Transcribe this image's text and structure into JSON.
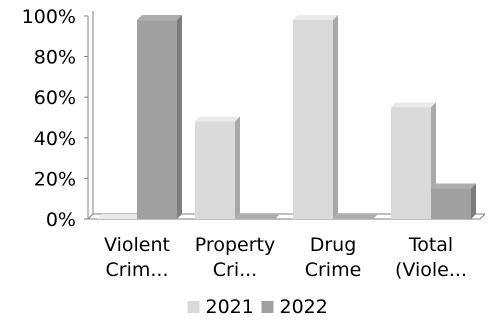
{
  "chart_data": {
    "type": "bar",
    "style": "3d-column",
    "categories": [
      [
        "Violent",
        "Crim..."
      ],
      [
        "Property",
        "Cri..."
      ],
      [
        "Drug",
        "Crime"
      ],
      [
        "Total",
        "(Viole..."
      ]
    ],
    "series": [
      {
        "name": "2021",
        "values": [
          0,
          48,
          98,
          55
        ],
        "color": "#d9d9d9"
      },
      {
        "name": "2022",
        "values": [
          98,
          0,
          0,
          15
        ],
        "color": "#a0a0a0"
      }
    ],
    "ylim": [
      0,
      100
    ],
    "yticks": [
      0,
      20,
      40,
      60,
      80,
      100
    ],
    "ytick_suffix": "%",
    "grid": false,
    "legend_position": "bottom"
  }
}
